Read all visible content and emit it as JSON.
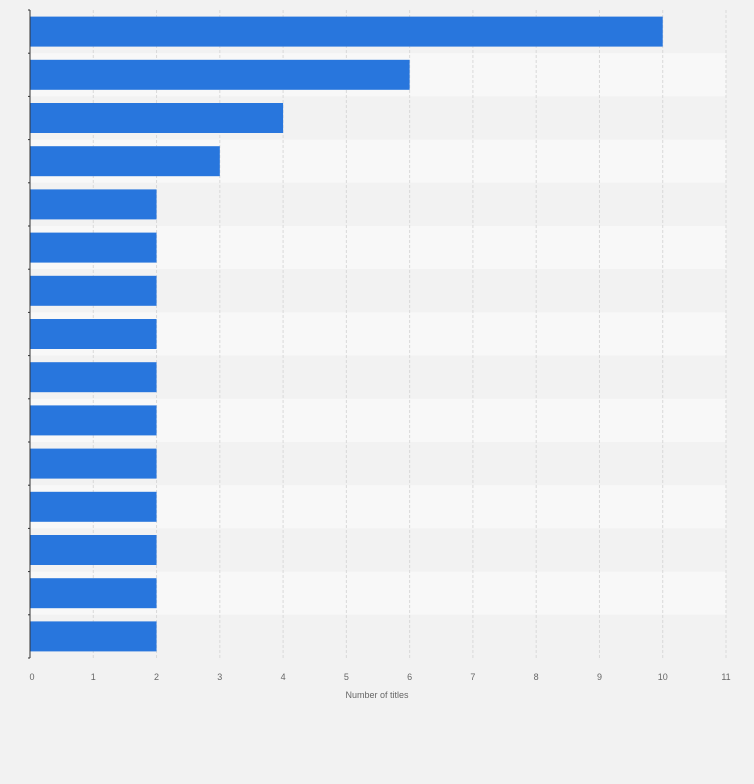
{
  "chart_data": {
    "type": "bar",
    "orientation": "horizontal",
    "categories": [
      "",
      "",
      "",
      "",
      "",
      "",
      "",
      "",
      "",
      "",
      "",
      "",
      "",
      "",
      ""
    ],
    "values": [
      10,
      6,
      4,
      3,
      2,
      2,
      2,
      2,
      2,
      2,
      2,
      2,
      2,
      2,
      2
    ],
    "xlabel": "Number of titles",
    "ylabel": "",
    "xlim": [
      0,
      11
    ],
    "xticks": [
      "0",
      "1",
      "2",
      "3",
      "4",
      "5",
      "6",
      "7",
      "8",
      "9",
      "10",
      "11"
    ],
    "grid": true,
    "legend": "none",
    "colors": {
      "bar": "#2876dd",
      "band_light": "#f8f8f8",
      "band_dark": "#f2f2f2",
      "grid": "#d9d9d9",
      "axis": "#333333",
      "tick_label": "#666666"
    }
  }
}
